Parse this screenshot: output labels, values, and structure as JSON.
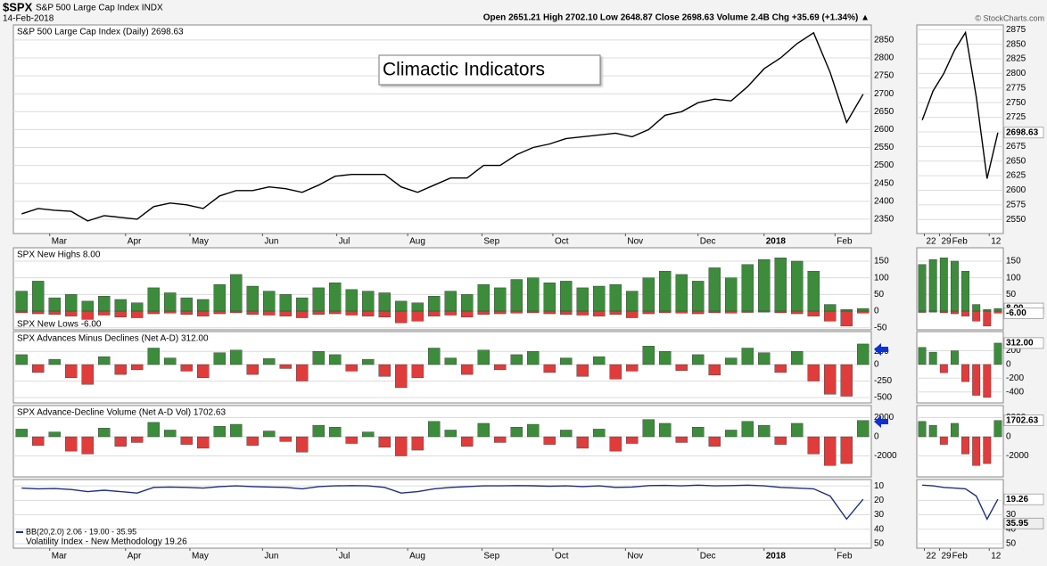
{
  "header": {
    "symbol": "$SPX",
    "name": "S&P 500 Large Cap Index INDX",
    "quote": "Open 2651.21 High 2702.10 Low 2648.87 Close 2698.63 Volume 2.4B Chg +35.69 (+1.34%) ▲",
    "date": "14-Feb-2018",
    "copyright": "© StockCharts.com"
  },
  "chart_data": [
    {
      "type": "line",
      "title": "S&P 500 Large Cap Index (Daily) 2698.63",
      "annotation": "Climactic Indicators",
      "color": "#000000",
      "values": [
        2365,
        2380,
        2375,
        2372,
        2345,
        2360,
        2355,
        2350,
        2385,
        2395,
        2390,
        2380,
        2415,
        2430,
        2430,
        2440,
        2435,
        2425,
        2445,
        2470,
        2475,
        2475,
        2475,
        2440,
        2425,
        2445,
        2465,
        2465,
        2500,
        2500,
        2530,
        2550,
        2560,
        2575,
        2580,
        2585,
        2590,
        2580,
        2600,
        2640,
        2650,
        2675,
        2685,
        2680,
        2720,
        2770,
        2800,
        2840,
        2870,
        2760,
        2620,
        2698.63
      ],
      "ylim": [
        2310,
        2892
      ],
      "yticks": [
        2350,
        2400,
        2450,
        2500,
        2550,
        2600,
        2650,
        2700,
        2750,
        2800,
        2850
      ],
      "grid": true,
      "xticks": [
        {
          "value": 1.7,
          "label": "Mar"
        },
        {
          "value": 6.3,
          "label": "Apr"
        },
        {
          "value": 10.2,
          "label": "May"
        },
        {
          "value": 14.6,
          "label": "Jun"
        },
        {
          "value": 19.1,
          "label": "Jul"
        },
        {
          "value": 23.4,
          "label": "Aug"
        },
        {
          "value": 27.9,
          "label": "Sep"
        },
        {
          "value": 32.2,
          "label": "Oct"
        },
        {
          "value": 36.6,
          "label": "Nov"
        },
        {
          "value": 41.0,
          "label": "Dec"
        },
        {
          "value": 45.0,
          "label": "2018"
        },
        {
          "value": 49.3,
          "label": "Feb"
        }
      ],
      "zoom_xticks": [
        {
          "value": 44.2,
          "label": "22"
        },
        {
          "value": 45.6,
          "label": "29"
        },
        {
          "value": 46.6,
          "label": "Feb"
        },
        {
          "value": 50.2,
          "label": "12"
        }
      ],
      "last_label": "2698.63",
      "zoom": {
        "ylim": [
          2526,
          2883
        ],
        "yticks": [
          2550,
          2575,
          2600,
          2625,
          2650,
          2675,
          2700,
          2725,
          2750,
          2775,
          2800,
          2825,
          2850,
          2875
        ]
      }
    },
    {
      "type": "bar",
      "colors": [
        "#3c8c3c",
        "#e03c3c"
      ],
      "series": [
        {
          "name": "SPX New Highs 8.00",
          "last_label": "8.00",
          "values": [
            60,
            90,
            40,
            50,
            30,
            45,
            35,
            25,
            70,
            55,
            40,
            35,
            80,
            110,
            75,
            60,
            50,
            40,
            70,
            85,
            65,
            60,
            55,
            30,
            25,
            45,
            60,
            50,
            80,
            70,
            95,
            100,
            85,
            90,
            70,
            75,
            80,
            60,
            100,
            120,
            110,
            90,
            130,
            100,
            140,
            155,
            160,
            150,
            120,
            20,
            5,
            8
          ]
        },
        {
          "name": "SPX New Lows -6.00",
          "last_label": "-6.00",
          "values": [
            -5,
            -8,
            -10,
            -15,
            -25,
            -12,
            -18,
            -20,
            -8,
            -6,
            -10,
            -15,
            -8,
            -5,
            -10,
            -12,
            -15,
            -20,
            -10,
            -8,
            -12,
            -15,
            -18,
            -35,
            -30,
            -15,
            -12,
            -18,
            -10,
            -8,
            -6,
            -5,
            -8,
            -10,
            -12,
            -15,
            -10,
            -20,
            -8,
            -5,
            -6,
            -8,
            -5,
            -6,
            -4,
            -3,
            -5,
            -8,
            -15,
            -30,
            -45,
            -6
          ]
        }
      ],
      "ylim": [
        -56,
        190
      ],
      "yticks": [
        150,
        100,
        50,
        0,
        -50
      ],
      "grid": true,
      "zoom": {
        "ylim": [
          -56,
          190
        ],
        "yticks": [
          150,
          100,
          50,
          0
        ]
      }
    },
    {
      "type": "bar",
      "title": "SPX Advances Minus Declines (Net A-D) 312.00",
      "colors": [
        "#3c8c3c",
        "#e03c3c"
      ],
      "last_label": "312.00",
      "values": [
        150,
        -120,
        80,
        -200,
        -300,
        120,
        -150,
        -80,
        250,
        100,
        -100,
        -200,
        180,
        220,
        -150,
        90,
        -60,
        -250,
        200,
        150,
        -100,
        80,
        -180,
        -350,
        -200,
        250,
        100,
        -150,
        220,
        -80,
        150,
        200,
        -120,
        100,
        -180,
        120,
        -220,
        -100,
        280,
        200,
        -90,
        150,
        -160,
        100,
        250,
        180,
        -120,
        200,
        -250,
        -450,
        -480,
        312
      ],
      "ylim": [
        -581,
        500
      ],
      "yticks": [
        200,
        0,
        -250,
        -500
      ],
      "grid": true,
      "zoom": {
        "ylim": [
          -560,
          480
        ],
        "yticks": [
          200,
          0,
          -200,
          -400
        ]
      }
    },
    {
      "type": "bar",
      "title": "SPX Advance-Decline Volume (Net A-D Vol) 1702.63",
      "colors": [
        "#3c8c3c",
        "#e03c3c"
      ],
      "last_label": "1702.63",
      "values": [
        800,
        -900,
        500,
        -1500,
        -1800,
        900,
        -1000,
        -600,
        1500,
        700,
        -800,
        -1200,
        1100,
        1300,
        -900,
        600,
        -500,
        -1600,
        1200,
        1000,
        -700,
        500,
        -1100,
        -2000,
        -1400,
        1600,
        700,
        -1000,
        1400,
        -600,
        1000,
        1300,
        -800,
        700,
        -1200,
        800,
        -1500,
        -700,
        1800,
        1400,
        -600,
        1000,
        -1000,
        700,
        1600,
        1200,
        -800,
        1400,
        -1800,
        -3000,
        -2800,
        1702.63
      ],
      "ylim": [
        -4186,
        3256
      ],
      "yticks": [
        2000,
        0,
        -2000
      ],
      "grid": true
    },
    {
      "type": "line",
      "color": "#1f2f7a",
      "inverted": true,
      "bb_text": "BB(20,2.0) 2.06 - 19.00 - 35.95",
      "title": "Volatility Index - New Methodology 19.26",
      "last_label": "19.26",
      "bb_label": "35.95",
      "bb_value": 35.95,
      "values": [
        11.5,
        12,
        11.8,
        12.5,
        14,
        13,
        14,
        15,
        11,
        10.8,
        11,
        11.5,
        10.5,
        10,
        10.5,
        10.8,
        11,
        12,
        10.5,
        10,
        9.8,
        10,
        11,
        15,
        14,
        12,
        11,
        10.5,
        10,
        10,
        9.8,
        9.9,
        10.2,
        10,
        10.5,
        10,
        11,
        10.8,
        9.8,
        9.7,
        10,
        9.5,
        10,
        9.8,
        9.5,
        10,
        11,
        11.5,
        12,
        17,
        33,
        19.26
      ],
      "ylim": [
        5.6,
        53.1
      ],
      "yticks": [
        10,
        20,
        30,
        40,
        50
      ],
      "grid": true,
      "zoom": {
        "ylim": [
          5.6,
          53.1
        ],
        "yticks": [
          20,
          30,
          40,
          50
        ]
      }
    }
  ]
}
